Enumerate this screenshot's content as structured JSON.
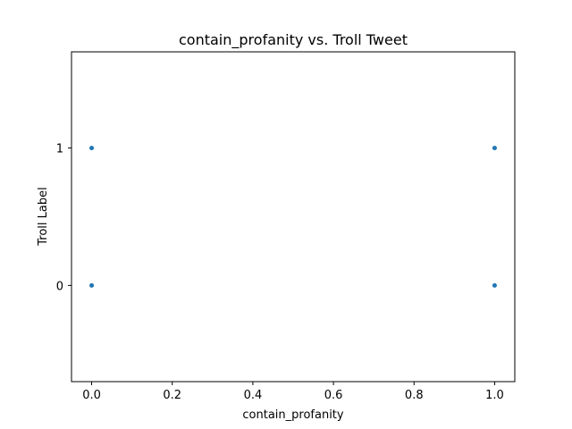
{
  "chart_data": {
    "type": "scatter",
    "title": "contain_profanity vs. Troll Tweet",
    "xlabel": "contain_profanity",
    "ylabel": "Troll Label",
    "xlim": [
      -0.05,
      1.05
    ],
    "ylim": [
      -0.7,
      1.7
    ],
    "xticks": [
      0.0,
      0.2,
      0.4,
      0.6,
      0.8,
      1.0
    ],
    "xtick_labels": [
      "0.0",
      "0.2",
      "0.4",
      "0.6",
      "0.8",
      "1.0"
    ],
    "yticks": [
      0,
      1
    ],
    "ytick_labels": [
      "0",
      "1"
    ],
    "grid": false,
    "point_color": "#1f77b4",
    "points": [
      {
        "x": 0,
        "y": 1
      },
      {
        "x": 0,
        "y": 0
      },
      {
        "x": 1,
        "y": 1
      },
      {
        "x": 1,
        "y": 0
      }
    ]
  }
}
